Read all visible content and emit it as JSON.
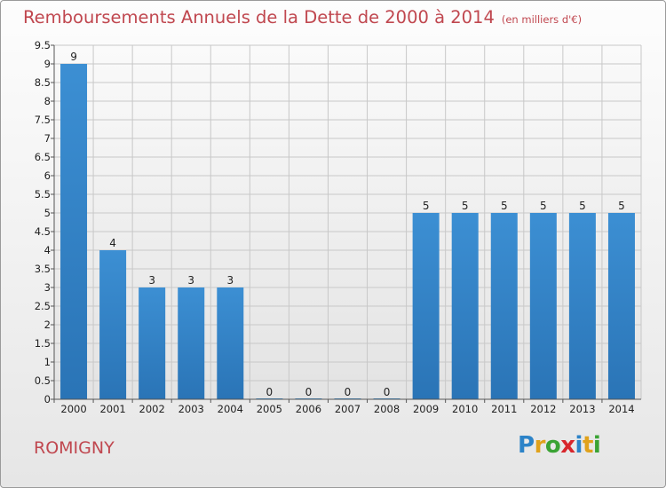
{
  "header": {
    "title": "Remboursements Annuels de la Dette de 2000 à 2014",
    "subtitle": "(en milliers d'€)"
  },
  "footer": {
    "commune": "ROMIGNY",
    "logo": {
      "letters": [
        "P",
        "r",
        "o",
        "x",
        "i",
        "t",
        "i"
      ],
      "colors": [
        "#2c83c8",
        "#e0a21c",
        "#3aa334",
        "#d8262c",
        "#2c83c8",
        "#e0a21c",
        "#3aa334"
      ]
    }
  },
  "colors": {
    "bar": "#3c8fd3",
    "bar_dark": "#2a74b6",
    "title": "#c0474f",
    "grid": "#c8c8c8"
  },
  "chart_data": {
    "type": "bar",
    "categories": [
      "2000",
      "2001",
      "2002",
      "2003",
      "2004",
      "2005",
      "2006",
      "2007",
      "2008",
      "2009",
      "2010",
      "2011",
      "2012",
      "2013",
      "2014"
    ],
    "values": [
      9,
      4,
      3,
      3,
      3,
      0,
      0,
      0,
      0,
      5,
      5,
      5,
      5,
      5,
      5
    ],
    "data_labels": [
      "9",
      "4",
      "3",
      "3",
      "3",
      "0",
      "0",
      "0",
      "0",
      "5",
      "5",
      "5",
      "5",
      "5",
      "5"
    ],
    "yticks": [
      "0",
      "0.5",
      "1",
      "1.5",
      "2",
      "2.5",
      "3",
      "3.5",
      "4",
      "4.5",
      "5",
      "5.5",
      "6",
      "6.5",
      "7",
      "7.5",
      "8",
      "8.5",
      "9",
      "9.5"
    ],
    "ylim": [
      0,
      9.5
    ],
    "grid": true,
    "legend": "none"
  }
}
